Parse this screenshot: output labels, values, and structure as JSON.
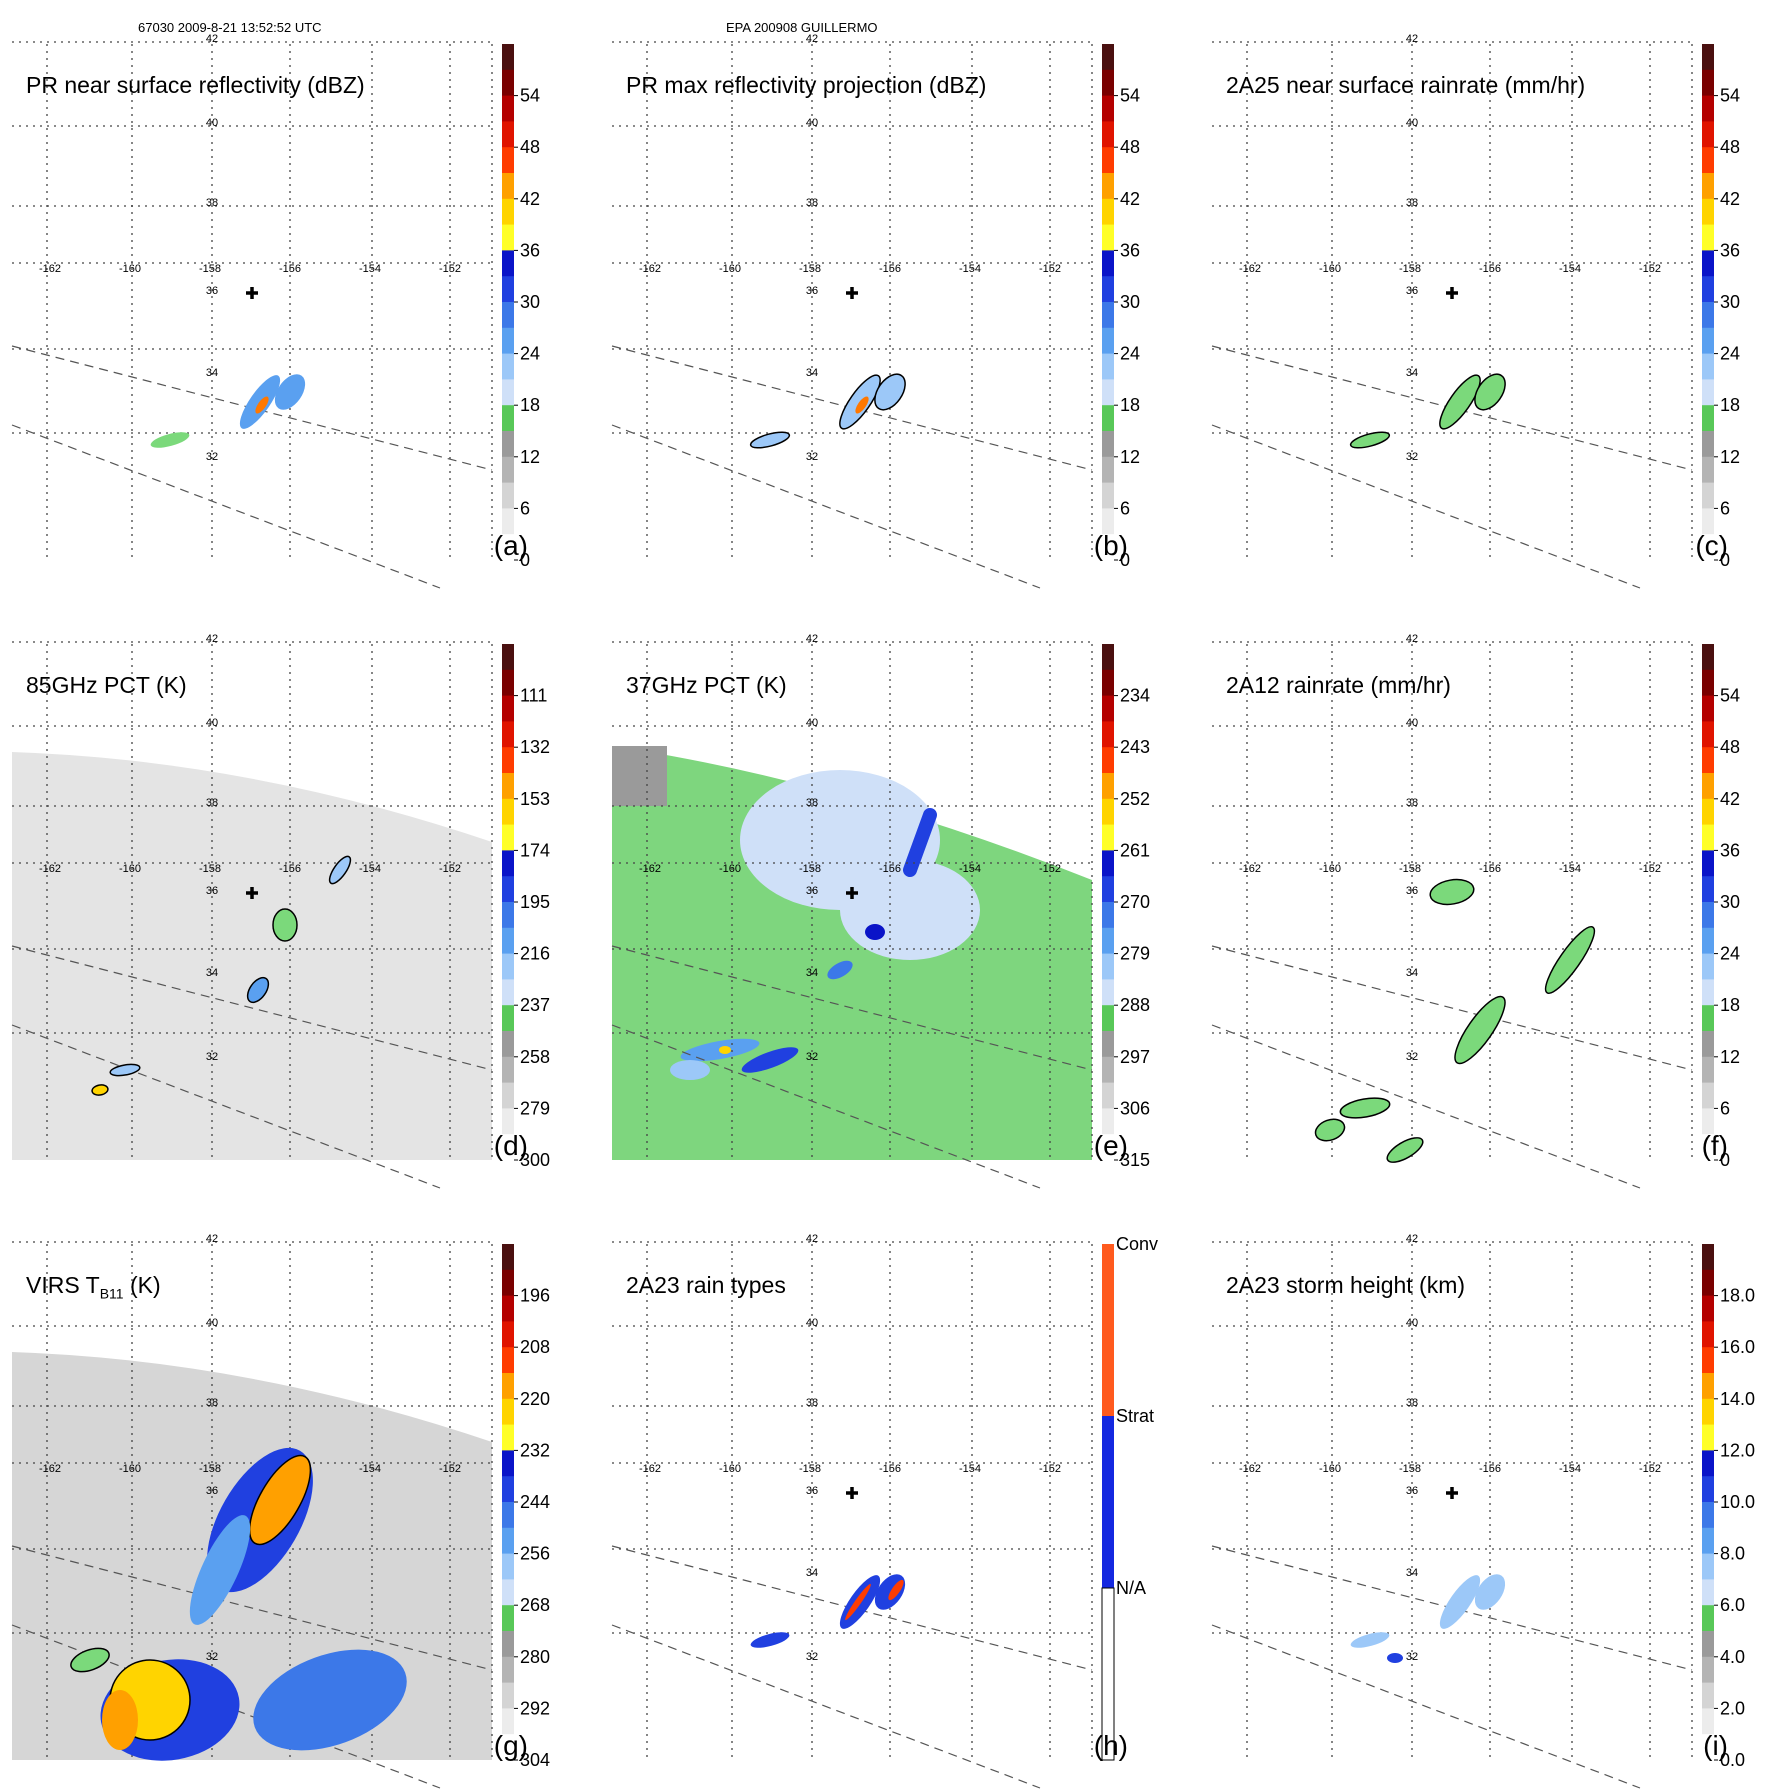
{
  "header": {
    "left": "67030 2009-8-21 13:52:52 UTC",
    "center": "EPA 200908 GUILLERMO"
  },
  "chart_data": [
    {
      "id": "a",
      "type": "heatmap",
      "title": "PR near surface reflectivity (dBZ)",
      "panel_label": "(a)",
      "colorbar": {
        "ticks": [
          "54",
          "48",
          "42",
          "36",
          "30",
          "24",
          "18",
          "12",
          "6",
          "0"
        ],
        "tick_pos": [
          1,
          2,
          3,
          4,
          5,
          6,
          7,
          8,
          9,
          10
        ],
        "range": [
          0,
          60
        ],
        "steps": [
          0,
          6,
          12,
          18,
          24,
          30,
          36,
          42,
          48,
          54,
          60
        ]
      },
      "lon_ticks": [
        "-162",
        "-160",
        "-158",
        "-156",
        "-154",
        "-152"
      ],
      "lat_ticks": [
        "42",
        "40",
        "38",
        "36",
        "34",
        "32"
      ]
    },
    {
      "id": "b",
      "type": "heatmap",
      "title": "PR max reflectivity projection (dBZ)",
      "panel_label": "(b)",
      "colorbar": {
        "ticks": [
          "54",
          "48",
          "42",
          "36",
          "30",
          "24",
          "18",
          "12",
          "6",
          "0"
        ],
        "tick_pos": [
          1,
          2,
          3,
          4,
          5,
          6,
          7,
          8,
          9,
          10
        ],
        "range": [
          0,
          60
        ]
      },
      "lon_ticks": [
        "-162",
        "-160",
        "-158",
        "-156",
        "-154",
        "-152"
      ],
      "lat_ticks": [
        "42",
        "40",
        "38",
        "36",
        "34",
        "32"
      ]
    },
    {
      "id": "c",
      "type": "heatmap",
      "title": "2A25 near surface rainrate (mm/hr)",
      "panel_label": "(c)",
      "colorbar": {
        "ticks": [
          "54",
          "48",
          "42",
          "36",
          "30",
          "24",
          "18",
          "12",
          "6",
          "0"
        ],
        "tick_pos": [
          1,
          2,
          3,
          4,
          5,
          6,
          7,
          8,
          9,
          10
        ],
        "range": [
          0,
          60
        ]
      },
      "lon_ticks": [
        "-162",
        "-160",
        "-158",
        "-156",
        "-154",
        "-152"
      ],
      "lat_ticks": [
        "42",
        "40",
        "38",
        "36",
        "34",
        "32"
      ]
    },
    {
      "id": "d",
      "type": "heatmap",
      "title": "85GHz PCT (K)",
      "panel_label": "(d)",
      "colorbar": {
        "ticks": [
          "111",
          "132",
          "153",
          "174",
          "195",
          "216",
          "237",
          "258",
          "279",
          "300"
        ],
        "tick_pos": [
          1,
          2,
          3,
          4,
          5,
          6,
          7,
          8,
          9,
          10
        ],
        "range": [
          90,
          300
        ]
      },
      "lon_ticks": [
        "-162",
        "-160",
        "-158",
        "-156",
        "-154",
        "-152"
      ],
      "lat_ticks": [
        "42",
        "40",
        "38",
        "36",
        "34",
        "32"
      ]
    },
    {
      "id": "e",
      "type": "heatmap",
      "title": "37GHz PCT (K)",
      "panel_label": "(e)",
      "colorbar": {
        "ticks": [
          "234",
          "243",
          "252",
          "261",
          "270",
          "279",
          "288",
          "297",
          "306",
          "315"
        ],
        "tick_pos": [
          1,
          2,
          3,
          4,
          5,
          6,
          7,
          8,
          9,
          10
        ],
        "range": [
          225,
          315
        ]
      },
      "lon_ticks": [
        "-162",
        "-160",
        "-158",
        "-156",
        "-154",
        "-152"
      ],
      "lat_ticks": [
        "42",
        "40",
        "38",
        "36",
        "34",
        "32"
      ]
    },
    {
      "id": "f",
      "type": "heatmap",
      "title": "2A12 rainrate (mm/hr)",
      "panel_label": "(f)",
      "colorbar": {
        "ticks": [
          "54",
          "48",
          "42",
          "36",
          "30",
          "24",
          "18",
          "12",
          "6",
          "0"
        ],
        "tick_pos": [
          1,
          2,
          3,
          4,
          5,
          6,
          7,
          8,
          9,
          10
        ],
        "range": [
          0,
          60
        ]
      },
      "lon_ticks": [
        "-162",
        "-160",
        "-158",
        "-156",
        "-154",
        "-152"
      ],
      "lat_ticks": [
        "42",
        "40",
        "38",
        "36",
        "34",
        "32"
      ]
    },
    {
      "id": "g",
      "type": "heatmap",
      "title": "VIRS T",
      "title_sub": "B11",
      "title_unit": " (K)",
      "panel_label": "(g)",
      "colorbar": {
        "ticks": [
          "196",
          "208",
          "220",
          "232",
          "244",
          "256",
          "268",
          "280",
          "292",
          "304"
        ],
        "tick_pos": [
          1,
          2,
          3,
          4,
          5,
          6,
          7,
          8,
          9,
          10
        ],
        "range": [
          184,
          304
        ]
      },
      "lon_ticks": [
        "-162",
        "-160",
        "-158",
        "-156",
        "-154",
        "-152"
      ],
      "lat_ticks": [
        "42",
        "40",
        "38",
        "36",
        "34",
        "32"
      ]
    },
    {
      "id": "h",
      "type": "heatmap",
      "title": "2A23 rain types",
      "panel_label": "(h)",
      "colorbar": {
        "ticks": [
          "Conv",
          "Strat",
          "N/A"
        ],
        "categorical": true
      },
      "lon_ticks": [
        "-162",
        "-160",
        "-158",
        "-156",
        "-154",
        "-152"
      ],
      "lat_ticks": [
        "42",
        "40",
        "38",
        "36",
        "34",
        "32"
      ]
    },
    {
      "id": "i",
      "type": "heatmap",
      "title": "2A23 storm height (km)",
      "panel_label": "(i)",
      "colorbar": {
        "ticks": [
          "18.0",
          "16.0",
          "14.0",
          "12.0",
          "10.0",
          "8.0",
          "6.0",
          "4.0",
          "2.0",
          "0.0"
        ],
        "tick_pos": [
          1,
          2,
          3,
          4,
          5,
          6,
          7,
          8,
          9,
          10
        ],
        "range": [
          0,
          20
        ]
      },
      "lon_ticks": [
        "-162",
        "-160",
        "-158",
        "-156",
        "-154",
        "-152"
      ],
      "lat_ticks": [
        "42",
        "40",
        "38",
        "36",
        "34",
        "32"
      ]
    }
  ],
  "colors": {
    "scale": [
      "#ffffff",
      "#ececec",
      "#d4d4d4",
      "#b4b4b4",
      "#9a9a9a",
      "#7bd97b",
      "#58c858",
      "#cfe0f8",
      "#9cc8f8",
      "#5aa0f0",
      "#3c78e8",
      "#2040e0",
      "#0a14c8",
      "#ffff28",
      "#ffd400",
      "#ffa000",
      "#ff7800",
      "#ff3c00",
      "#e01400",
      "#b40000",
      "#7a0000",
      "#4a1010"
    ],
    "storm_center_marker": "#000000",
    "swath_edge": "#555555"
  }
}
